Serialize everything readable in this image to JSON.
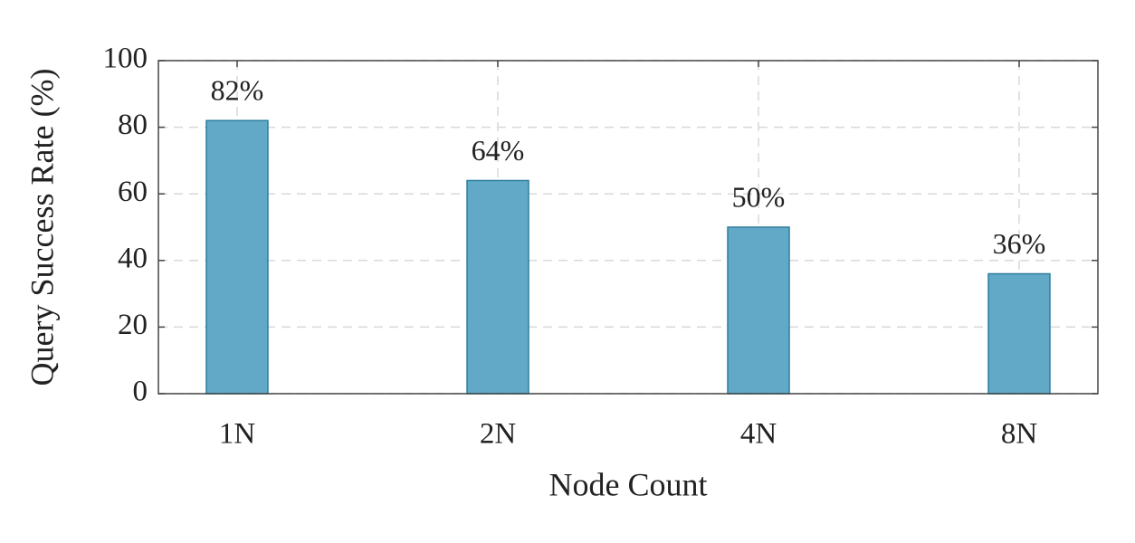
{
  "chart_data": {
    "type": "bar",
    "categories": [
      "1N",
      "2N",
      "4N",
      "8N"
    ],
    "values": [
      82,
      64,
      50,
      36
    ],
    "value_labels": [
      "82%",
      "64%",
      "50%",
      "36%"
    ],
    "color": "#62a9c7",
    "xlabel": "Node Count",
    "ylabel": "Query Success Rate (%)",
    "ylim": [
      0,
      100
    ],
    "yticks": [
      0,
      20,
      40,
      60,
      80,
      100
    ],
    "grid": true
  }
}
